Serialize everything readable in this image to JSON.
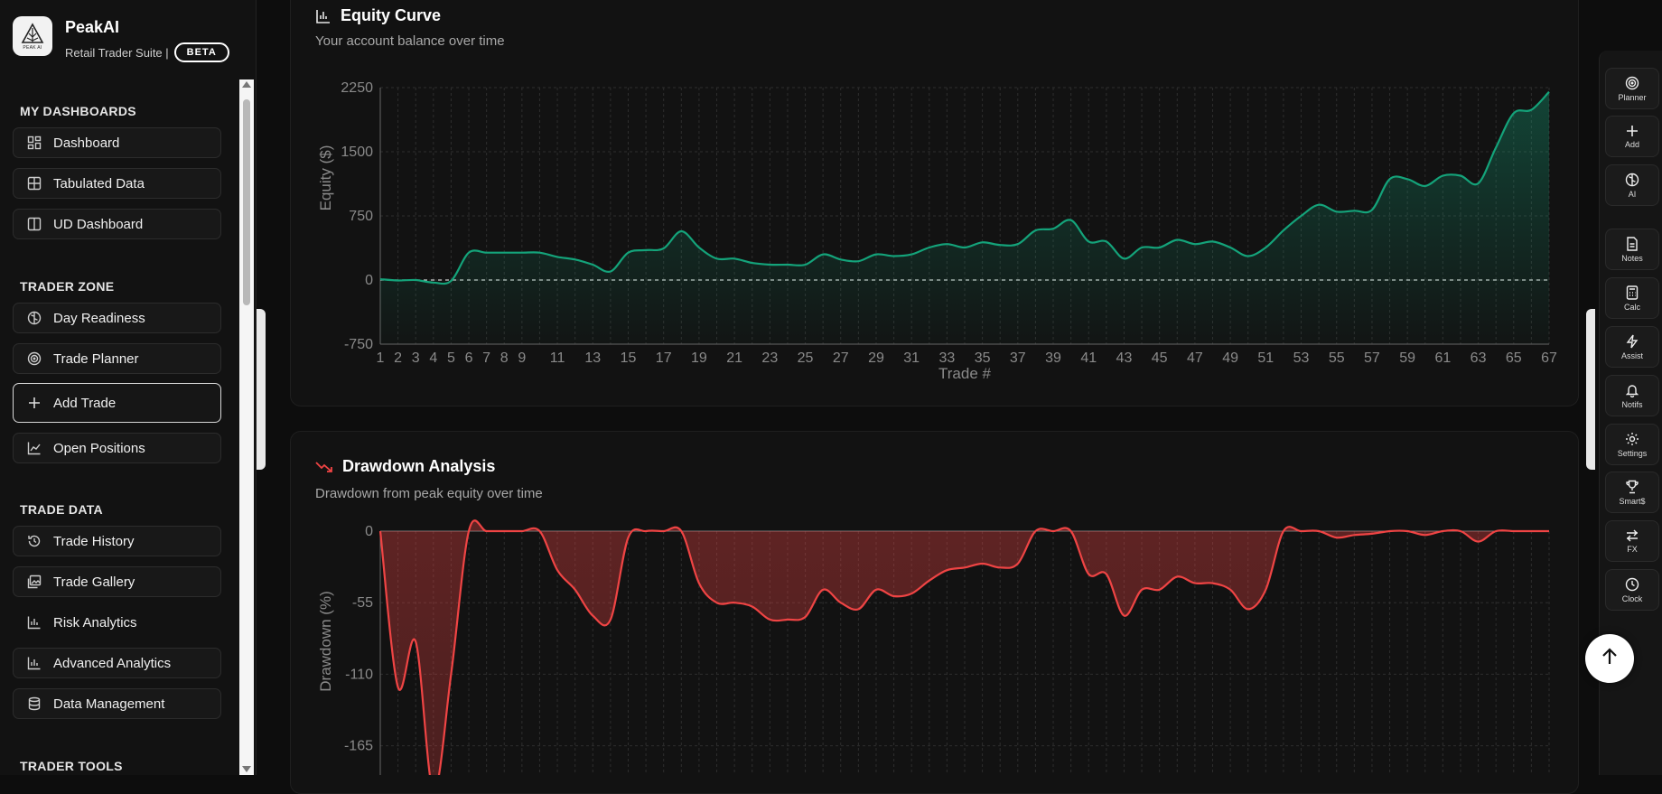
{
  "brand": {
    "name": "PeakAI",
    "subtitle": "Retail Trader Suite |",
    "beta": "BETA",
    "logo_text": "PEAK AI"
  },
  "sections": {
    "dashboards": "MY DASHBOARDS",
    "trader_zone": "TRADER ZONE",
    "trade_data": "TRADE DATA",
    "trader_tools": "TRADER TOOLS"
  },
  "nav": {
    "dashboard": "Dashboard",
    "tabulated": "Tabulated Data",
    "ud": "UD Dashboard",
    "readiness": "Day Readiness",
    "planner": "Trade Planner",
    "add_trade": "Add Trade",
    "open_positions": "Open Positions",
    "history": "Trade History",
    "gallery": "Trade Gallery",
    "risk": "Risk Analytics",
    "advanced": "Advanced Analytics",
    "data_mgmt": "Data Management"
  },
  "equity": {
    "title": "Equity Curve",
    "subtitle": "Your account balance over time"
  },
  "drawdown": {
    "title": "Drawdown Analysis",
    "subtitle": "Drawdown from peak equity over time"
  },
  "rail": {
    "planner": "Planner",
    "add": "Add",
    "ai": "AI",
    "notes": "Notes",
    "calc": "Calc",
    "assist": "Assist",
    "notifs": "Notifs",
    "settings": "Settings",
    "smart": "Smart$",
    "fx": "FX",
    "clock": "Clock"
  },
  "colors": {
    "equity": "#14a37a",
    "drawdown": "#ef4444",
    "bg": "#0d0d0d"
  },
  "chart_data": [
    {
      "type": "area",
      "title": "Equity Curve",
      "xlabel": "Trade #",
      "ylabel": "Equity ($)",
      "x_ticks": [
        "1",
        "2",
        "3",
        "4",
        "5",
        "6",
        "7",
        "8",
        "9",
        "11",
        "13",
        "15",
        "17",
        "19",
        "21",
        "23",
        "25",
        "27",
        "29",
        "31",
        "33",
        "35",
        "37",
        "39",
        "41",
        "43",
        "45",
        "47",
        "49",
        "51",
        "53",
        "55",
        "57",
        "59",
        "61",
        "63",
        "65",
        "67"
      ],
      "y_ticks": [
        "2250",
        "1500",
        "750",
        "0",
        "-750"
      ],
      "ylim": [
        -750,
        2250
      ],
      "x": [
        1,
        2,
        3,
        4,
        5,
        6,
        7,
        8,
        9,
        10,
        11,
        12,
        13,
        14,
        15,
        16,
        17,
        18,
        19,
        20,
        21,
        22,
        23,
        24,
        25,
        26,
        27,
        28,
        29,
        30,
        31,
        32,
        33,
        34,
        35,
        36,
        37,
        38,
        39,
        40,
        41,
        42,
        43,
        44,
        45,
        46,
        47,
        48,
        49,
        50,
        51,
        52,
        53,
        54,
        55,
        56,
        57,
        58,
        59,
        60,
        61,
        62,
        63,
        64,
        65,
        66,
        67
      ],
      "values": [
        10,
        -5,
        0,
        -30,
        -10,
        320,
        320,
        320,
        320,
        320,
        270,
        240,
        180,
        100,
        320,
        350,
        370,
        570,
        380,
        250,
        250,
        200,
        180,
        180,
        180,
        300,
        240,
        220,
        300,
        280,
        300,
        380,
        420,
        380,
        440,
        410,
        420,
        580,
        600,
        700,
        450,
        450,
        250,
        380,
        380,
        470,
        420,
        450,
        380,
        280,
        380,
        580,
        750,
        880,
        800,
        810,
        820,
        1180,
        1180,
        1100,
        1220,
        1220,
        1130,
        1550,
        1950,
        1990,
        2200
      ]
    },
    {
      "type": "area",
      "title": "Drawdown Analysis",
      "xlabel": "",
      "ylabel": "Drawdown (%)",
      "y_ticks": [
        "0",
        "-55",
        "-110",
        "-165"
      ],
      "ylim": [
        -200,
        0
      ],
      "x": [
        1,
        2,
        3,
        4,
        5,
        6,
        7,
        8,
        9,
        10,
        11,
        12,
        13,
        14,
        15,
        16,
        17,
        18,
        19,
        20,
        21,
        22,
        23,
        24,
        25,
        26,
        27,
        28,
        29,
        30,
        31,
        32,
        33,
        34,
        35,
        36,
        37,
        38,
        39,
        40,
        41,
        42,
        43,
        44,
        45,
        46,
        47,
        48,
        49,
        50,
        51,
        52,
        53,
        54,
        55,
        56,
        57,
        58,
        59,
        60,
        61,
        62,
        63,
        64,
        65,
        66,
        67
      ],
      "values": [
        0,
        -120,
        -85,
        -200,
        -110,
        0,
        0,
        0,
        0,
        0,
        -30,
        -45,
        -65,
        -68,
        -5,
        0,
        0,
        0,
        -40,
        -55,
        -55,
        -58,
        -68,
        -68,
        -66,
        -45,
        -55,
        -60,
        -45,
        -50,
        -48,
        -38,
        -30,
        -28,
        -25,
        -28,
        -25,
        0,
        0,
        0,
        -33,
        -33,
        -65,
        -45,
        -45,
        -35,
        -40,
        -40,
        -45,
        -60,
        -45,
        0,
        0,
        0,
        -5,
        -3,
        -2,
        0,
        0,
        -3,
        0,
        0,
        -8,
        0,
        0,
        0,
        0
      ]
    }
  ]
}
